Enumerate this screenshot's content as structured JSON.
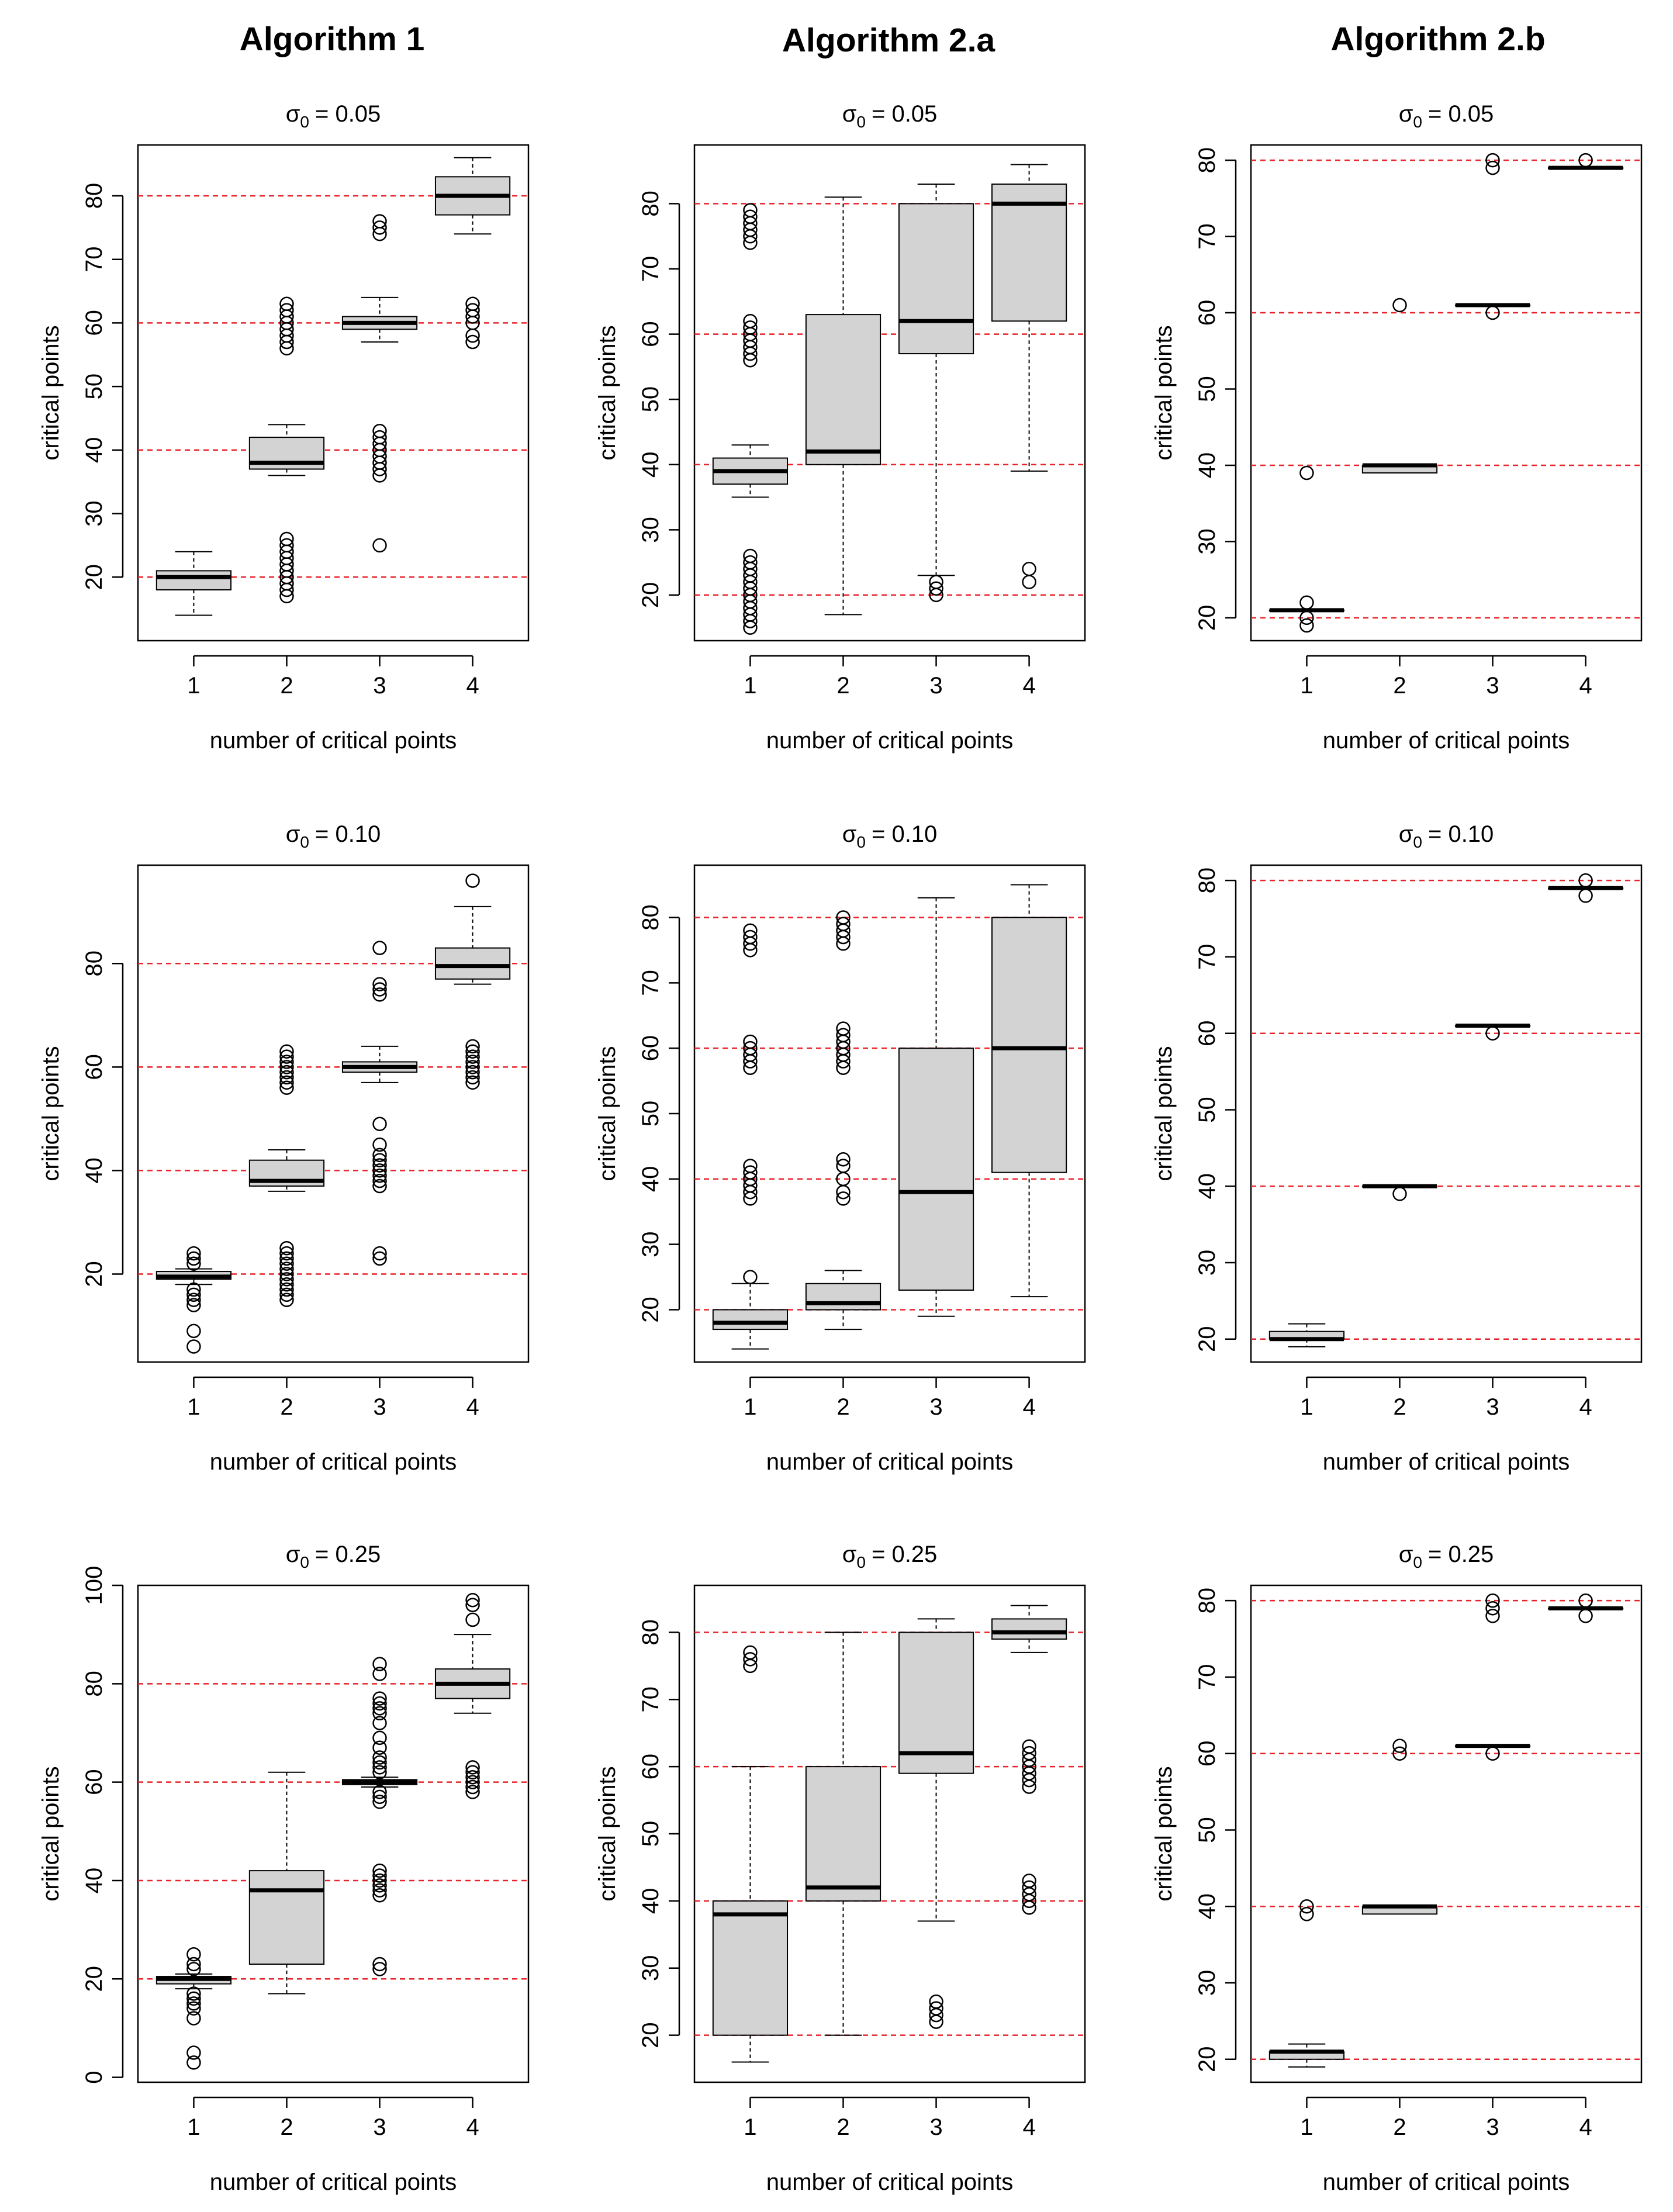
{
  "figure": {
    "column_titles": [
      "Algorithm 1",
      "Algorithm 2.a",
      "Algorithm 2.b"
    ],
    "reference_line_color": "#e8242a",
    "box_fill_color": "#d3d3d3",
    "reference_lines": [
      20,
      40,
      60,
      80
    ]
  },
  "chart_data": [
    {
      "type": "boxplot",
      "id": "alg1-s005",
      "algorithm": "Algorithm 1",
      "title": "σ0 = 0.05",
      "sigma_symbol": "σ",
      "sigma_sub": "0",
      "sigma_value": "= 0.05",
      "xlabel": "number of critical points",
      "ylabel": "critical points",
      "categories": [
        "1",
        "2",
        "3",
        "4"
      ],
      "ylim": [
        10,
        88
      ],
      "yticks": [
        20,
        30,
        40,
        50,
        60,
        70,
        80
      ],
      "boxes": [
        {
          "q1": 18,
          "median": 20,
          "q3": 21,
          "whisker_low": 14,
          "whisker_high": 24,
          "outliers": []
        },
        {
          "q1": 37,
          "median": 38,
          "q3": 42,
          "whisker_low": 36,
          "whisker_high": 44,
          "outliers": [
            17,
            18,
            19,
            20,
            21,
            22,
            23,
            24,
            25,
            26,
            56,
            57,
            58,
            59,
            60,
            61,
            62,
            63
          ]
        },
        {
          "q1": 59,
          "median": 60,
          "q3": 61,
          "whisker_low": 57,
          "whisker_high": 64,
          "outliers": [
            25,
            36,
            37,
            38,
            39,
            40,
            41,
            42,
            43,
            74,
            75,
            76
          ]
        },
        {
          "q1": 77,
          "median": 80,
          "q3": 83,
          "whisker_low": 74,
          "whisker_high": 86,
          "outliers": [
            57,
            58,
            60,
            61,
            62,
            63
          ]
        }
      ]
    },
    {
      "type": "boxplot",
      "id": "alg2a-s005",
      "algorithm": "Algorithm 2.a",
      "title": "σ0 = 0.05",
      "sigma_symbol": "σ",
      "sigma_sub": "0",
      "sigma_value": "= 0.05",
      "xlabel": "number of critical points",
      "ylabel": "critical points",
      "categories": [
        "1",
        "2",
        "3",
        "4"
      ],
      "ylim": [
        13,
        89
      ],
      "yticks": [
        20,
        30,
        40,
        50,
        60,
        70,
        80
      ],
      "boxes": [
        {
          "q1": 37,
          "median": 39,
          "q3": 41,
          "whisker_low": 35,
          "whisker_high": 43,
          "outliers": [
            15,
            16,
            17,
            18,
            19,
            20,
            21,
            22,
            23,
            24,
            25,
            26,
            56,
            57,
            58,
            59,
            60,
            61,
            62,
            74,
            75,
            76,
            77,
            78,
            79
          ]
        },
        {
          "q1": 40,
          "median": 42,
          "q3": 63,
          "whisker_low": 17,
          "whisker_high": 81,
          "outliers": []
        },
        {
          "q1": 57,
          "median": 62,
          "q3": 80,
          "whisker_low": 23,
          "whisker_high": 83,
          "outliers": [
            20,
            21,
            22
          ]
        },
        {
          "q1": 62,
          "median": 80,
          "q3": 83,
          "whisker_low": 39,
          "whisker_high": 86,
          "outliers": [
            22,
            24
          ]
        }
      ]
    },
    {
      "type": "boxplot",
      "id": "alg2b-s005",
      "algorithm": "Algorithm 2.b",
      "title": "σ0 = 0.05",
      "sigma_symbol": "σ",
      "sigma_sub": "0",
      "sigma_value": "= 0.05",
      "xlabel": "number of critical points",
      "ylabel": "critical points",
      "categories": [
        "1",
        "2",
        "3",
        "4"
      ],
      "ylim": [
        17,
        82
      ],
      "yticks": [
        20,
        30,
        40,
        50,
        60,
        70,
        80
      ],
      "boxes": [
        {
          "q1": 21,
          "median": 21,
          "q3": 21,
          "whisker_low": 21,
          "whisker_high": 21,
          "outliers": [
            19,
            20,
            22,
            39
          ]
        },
        {
          "q1": 39,
          "median": 40,
          "q3": 40,
          "whisker_low": 39,
          "whisker_high": 40,
          "outliers": [
            61
          ]
        },
        {
          "q1": 61,
          "median": 61,
          "q3": 61,
          "whisker_low": 61,
          "whisker_high": 61,
          "outliers": [
            60,
            79,
            80
          ]
        },
        {
          "q1": 79,
          "median": 79,
          "q3": 79,
          "whisker_low": 79,
          "whisker_high": 79,
          "outliers": [
            80
          ]
        }
      ]
    },
    {
      "type": "boxplot",
      "id": "alg1-s010",
      "algorithm": "Algorithm 1",
      "title": "σ0 = 0.10",
      "sigma_symbol": "σ",
      "sigma_sub": "0",
      "sigma_value": "= 0.10",
      "xlabel": "number of critical points",
      "ylabel": "critical points",
      "categories": [
        "1",
        "2",
        "3",
        "4"
      ],
      "ylim": [
        3,
        99
      ],
      "yticks": [
        20,
        40,
        60,
        80
      ],
      "boxes": [
        {
          "q1": 19,
          "median": 19.5,
          "q3": 20.5,
          "whisker_low": 18,
          "whisker_high": 21,
          "outliers": [
            6,
            9,
            14,
            15,
            16,
            17,
            22,
            23,
            24
          ]
        },
        {
          "q1": 37,
          "median": 38,
          "q3": 42,
          "whisker_low": 36,
          "whisker_high": 44,
          "outliers": [
            15,
            16,
            17,
            18,
            19,
            20,
            21,
            22,
            23,
            24,
            25,
            56,
            57,
            58,
            59,
            60,
            61,
            62,
            63
          ]
        },
        {
          "q1": 59,
          "median": 60,
          "q3": 61,
          "whisker_low": 57,
          "whisker_high": 64,
          "outliers": [
            23,
            24,
            37,
            38,
            39,
            40,
            41,
            42,
            43,
            45,
            49,
            74,
            75,
            76,
            83
          ]
        },
        {
          "q1": 77,
          "median": 79.5,
          "q3": 83,
          "whisker_low": 76,
          "whisker_high": 91,
          "outliers": [
            57,
            58,
            59,
            60,
            61,
            62,
            63,
            64,
            96
          ]
        }
      ]
    },
    {
      "type": "boxplot",
      "id": "alg2a-s010",
      "algorithm": "Algorithm 2.a",
      "title": "σ0 = 0.10",
      "sigma_symbol": "σ",
      "sigma_sub": "0",
      "sigma_value": "= 0.10",
      "xlabel": "number of critical points",
      "ylabel": "critical points",
      "categories": [
        "1",
        "2",
        "3",
        "4"
      ],
      "ylim": [
        12,
        88
      ],
      "yticks": [
        20,
        30,
        40,
        50,
        60,
        70,
        80
      ],
      "boxes": [
        {
          "q1": 17,
          "median": 18,
          "q3": 20,
          "whisker_low": 14,
          "whisker_high": 24,
          "outliers": [
            25,
            37,
            38,
            39,
            40,
            41,
            42,
            57,
            58,
            59,
            60,
            61,
            75,
            76,
            77,
            78
          ]
        },
        {
          "q1": 20,
          "median": 21,
          "q3": 24,
          "whisker_low": 17,
          "whisker_high": 26,
          "outliers": [
            37,
            38,
            40,
            42,
            43,
            57,
            58,
            59,
            60,
            61,
            62,
            63,
            76,
            77,
            78,
            79,
            80
          ]
        },
        {
          "q1": 23,
          "median": 38,
          "q3": 60,
          "whisker_low": 19,
          "whisker_high": 83,
          "outliers": []
        },
        {
          "q1": 41,
          "median": 60,
          "q3": 80,
          "whisker_low": 22,
          "whisker_high": 85,
          "outliers": []
        }
      ]
    },
    {
      "type": "boxplot",
      "id": "alg2b-s010",
      "algorithm": "Algorithm 2.b",
      "title": "σ0 = 0.10",
      "sigma_symbol": "σ",
      "sigma_sub": "0",
      "sigma_value": "= 0.10",
      "xlabel": "number of critical points",
      "ylabel": "critical points",
      "categories": [
        "1",
        "2",
        "3",
        "4"
      ],
      "ylim": [
        17,
        82
      ],
      "yticks": [
        20,
        30,
        40,
        50,
        60,
        70,
        80
      ],
      "boxes": [
        {
          "q1": 20,
          "median": 20,
          "q3": 21,
          "whisker_low": 19,
          "whisker_high": 22,
          "outliers": []
        },
        {
          "q1": 40,
          "median": 40,
          "q3": 40,
          "whisker_low": 40,
          "whisker_high": 40,
          "outliers": [
            39
          ]
        },
        {
          "q1": 61,
          "median": 61,
          "q3": 61,
          "whisker_low": 61,
          "whisker_high": 61,
          "outliers": [
            60
          ]
        },
        {
          "q1": 79,
          "median": 79,
          "q3": 79,
          "whisker_low": 79,
          "whisker_high": 79,
          "outliers": [
            78,
            80
          ]
        }
      ]
    },
    {
      "type": "boxplot",
      "id": "alg1-s025",
      "algorithm": "Algorithm 1",
      "title": "σ0 = 0.25",
      "sigma_symbol": "σ",
      "sigma_sub": "0",
      "sigma_value": "= 0.25",
      "xlabel": "number of critical points",
      "ylabel": "critical points",
      "categories": [
        "1",
        "2",
        "3",
        "4"
      ],
      "ylim": [
        -1,
        100
      ],
      "yticks": [
        0,
        20,
        40,
        60,
        80,
        100
      ],
      "boxes": [
        {
          "q1": 19,
          "median": 20,
          "q3": 20.5,
          "whisker_low": 18,
          "whisker_high": 21,
          "outliers": [
            3,
            5,
            12,
            14,
            15,
            16,
            17,
            22,
            23,
            25
          ]
        },
        {
          "q1": 23,
          "median": 38,
          "q3": 42,
          "whisker_low": 17,
          "whisker_high": 62,
          "outliers": []
        },
        {
          "q1": 59.5,
          "median": 60,
          "q3": 60.5,
          "whisker_low": 59,
          "whisker_high": 61,
          "outliers": [
            22,
            23,
            37,
            38,
            39,
            40,
            41,
            42,
            56,
            57,
            58,
            62,
            63,
            64,
            65,
            67,
            69,
            72,
            74,
            75,
            76,
            77,
            82,
            84
          ]
        },
        {
          "q1": 77,
          "median": 80,
          "q3": 83,
          "whisker_low": 74,
          "whisker_high": 90,
          "outliers": [
            58,
            59,
            60,
            61,
            62,
            63,
            93,
            96,
            97
          ]
        }
      ]
    },
    {
      "type": "boxplot",
      "id": "alg2a-s025",
      "algorithm": "Algorithm 2.a",
      "title": "σ0 = 0.25",
      "sigma_symbol": "σ",
      "sigma_sub": "0",
      "sigma_value": "= 0.25",
      "xlabel": "number of critical points",
      "ylabel": "critical points",
      "categories": [
        "1",
        "2",
        "3",
        "4"
      ],
      "ylim": [
        13,
        87
      ],
      "yticks": [
        20,
        30,
        40,
        50,
        60,
        70,
        80
      ],
      "boxes": [
        {
          "q1": 20,
          "median": 38,
          "q3": 40,
          "whisker_low": 16,
          "whisker_high": 60,
          "outliers": [
            75,
            76,
            77
          ]
        },
        {
          "q1": 40,
          "median": 42,
          "q3": 60,
          "whisker_low": 20,
          "whisker_high": 80,
          "outliers": []
        },
        {
          "q1": 59,
          "median": 62,
          "q3": 80,
          "whisker_low": 37,
          "whisker_high": 82,
          "outliers": [
            22,
            23,
            24,
            25
          ]
        },
        {
          "q1": 79,
          "median": 80,
          "q3": 82,
          "whisker_low": 77,
          "whisker_high": 84,
          "outliers": [
            39,
            40,
            41,
            42,
            43,
            57,
            58,
            59,
            60,
            61,
            62,
            63
          ]
        }
      ]
    },
    {
      "type": "boxplot",
      "id": "alg2b-s025",
      "algorithm": "Algorithm 2.b",
      "title": "σ0 = 0.25",
      "sigma_symbol": "σ",
      "sigma_sub": "0",
      "sigma_value": "= 0.25",
      "xlabel": "number of critical points",
      "ylabel": "critical points",
      "categories": [
        "1",
        "2",
        "3",
        "4"
      ],
      "ylim": [
        17,
        82
      ],
      "yticks": [
        20,
        30,
        40,
        50,
        60,
        70,
        80
      ],
      "boxes": [
        {
          "q1": 20,
          "median": 21,
          "q3": 21,
          "whisker_low": 19,
          "whisker_high": 22,
          "outliers": [
            39,
            40
          ]
        },
        {
          "q1": 39,
          "median": 40,
          "q3": 40,
          "whisker_low": 39,
          "whisker_high": 40,
          "outliers": [
            60,
            61
          ]
        },
        {
          "q1": 61,
          "median": 61,
          "q3": 61,
          "whisker_low": 61,
          "whisker_high": 61,
          "outliers": [
            60,
            78,
            79,
            80
          ]
        },
        {
          "q1": 79,
          "median": 79,
          "q3": 79,
          "whisker_low": 79,
          "whisker_high": 79,
          "outliers": [
            78,
            80
          ]
        }
      ]
    }
  ]
}
